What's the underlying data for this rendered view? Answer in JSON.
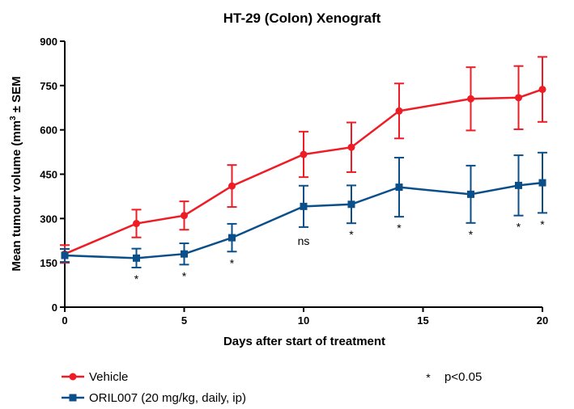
{
  "chart_data": {
    "type": "line",
    "title": "HT-29 (Colon) Xenograft",
    "xlabel": "Days after start of treatment",
    "ylabel_main": "Mean tumour volume (mm",
    "ylabel_sup": "3",
    "ylabel_tail": " ± SEM",
    "xlim": [
      0,
      20
    ],
    "ylim": [
      0,
      900
    ],
    "xticks": [
      0,
      5,
      10,
      15,
      20
    ],
    "yticks": [
      0,
      150,
      300,
      450,
      600,
      750,
      900
    ],
    "grid": false,
    "legend_position": "bottom",
    "series": [
      {
        "name": "Vehicle",
        "color": "#ee1c25",
        "marker": "circle",
        "x": [
          0,
          3,
          5,
          7,
          10,
          12,
          14,
          17,
          19,
          20
        ],
        "y": [
          180,
          283,
          310,
          410,
          517,
          541,
          664,
          705,
          709,
          737
        ],
        "err": [
          30,
          47,
          48,
          71,
          77,
          84,
          93,
          107,
          107,
          110
        ]
      },
      {
        "name": "ORIL007 (20 mg/kg, daily, ip)",
        "color": "#0b4f8a",
        "marker": "square",
        "x": [
          0,
          3,
          5,
          7,
          10,
          12,
          14,
          17,
          19,
          20
        ],
        "y": [
          175,
          166,
          180,
          235,
          341,
          348,
          406,
          382,
          412,
          421
        ],
        "err": [
          22,
          32,
          36,
          47,
          70,
          64,
          100,
          97,
          102,
          102
        ]
      }
    ],
    "annotations": [
      {
        "x": 3,
        "label": "*"
      },
      {
        "x": 5,
        "label": "*"
      },
      {
        "x": 7,
        "label": "*"
      },
      {
        "x": 10,
        "label": "ns"
      },
      {
        "x": 12,
        "label": "*"
      },
      {
        "x": 14,
        "label": "*"
      },
      {
        "x": 17,
        "label": "*"
      },
      {
        "x": 19,
        "label": "*"
      },
      {
        "x": 20,
        "label": "*"
      }
    ],
    "significance_legend": {
      "symbol": "*",
      "text": "p<0.05"
    }
  }
}
